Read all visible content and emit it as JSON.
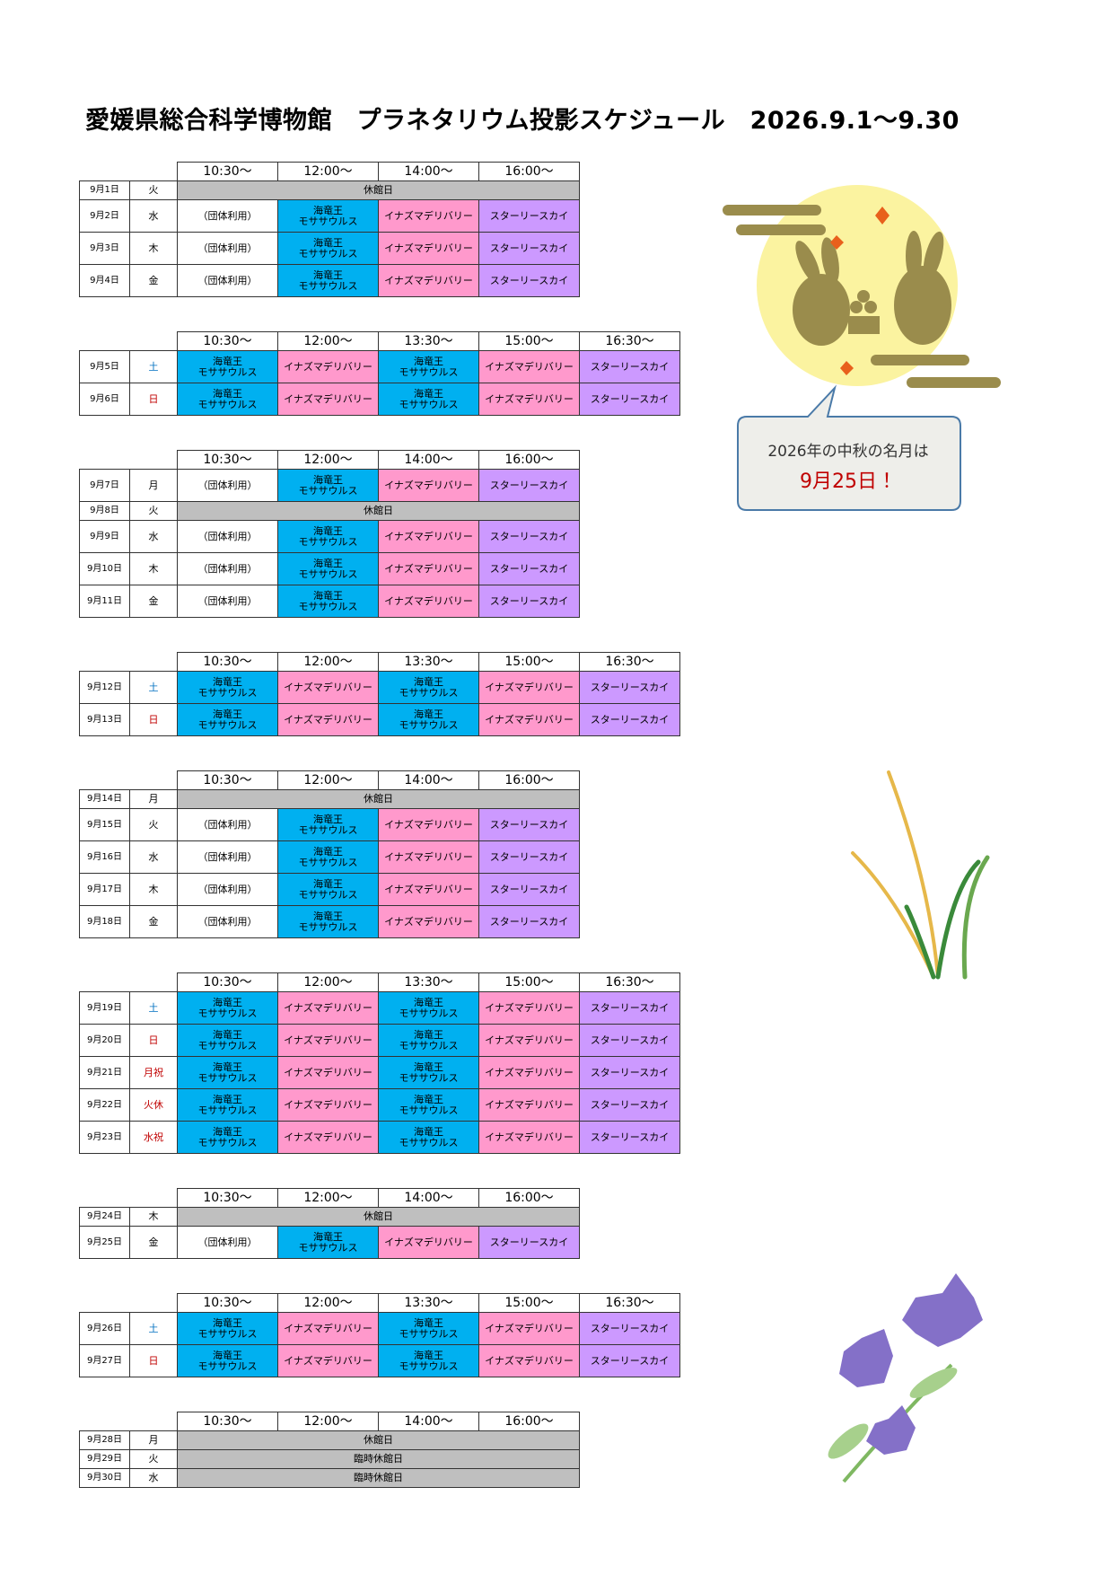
{
  "header": {
    "title": "愛媛県総合科学博物館　プラネタリウム投影スケジュール　2026.9.1～9.30"
  },
  "callout": {
    "line1": "2026年の中秋の名月は",
    "line2": "9月25日！",
    "line2_color": "#c00000"
  },
  "blocks": [
    {
      "times": [
        "10:30～",
        "12:00～",
        "14:00～",
        "16:00～"
      ],
      "rows": [
        {
          "date": "9月1日",
          "day": "火",
          "cells": [
            {
              "text": "休館日",
              "color": "#bfbfbf"
            }
          ]
        },
        {
          "date": "9月2日",
          "day": "水",
          "cells": [
            {
              "text": "（団体利用）",
              "color": "#ffffff"
            },
            {
              "text": "海竜王\nモササウルス",
              "color": "#00b0f0"
            },
            {
              "text": "イナズマデリバリー",
              "color": "#ff99cc"
            },
            {
              "text": "スターリースカイ",
              "color": "#cc99ff"
            }
          ]
        },
        {
          "date": "9月3日",
          "day": "木",
          "cells": [
            {
              "text": "（団体利用）",
              "color": "#ffffff"
            },
            {
              "text": "海竜王\nモササウルス",
              "color": "#00b0f0"
            },
            {
              "text": "イナズマデリバリー",
              "color": "#ff99cc"
            },
            {
              "text": "スターリースカイ",
              "color": "#cc99ff"
            }
          ]
        },
        {
          "date": "9月4日",
          "day": "金",
          "cells": [
            {
              "text": "（団体利用）",
              "color": "#ffffff"
            },
            {
              "text": "海竜王\nモササウルス",
              "color": "#00b0f0"
            },
            {
              "text": "イナズマデリバリー",
              "color": "#ff99cc"
            },
            {
              "text": "スターリースカイ",
              "color": "#cc99ff"
            }
          ]
        }
      ]
    },
    {
      "times": [
        "10:30～",
        "12:00～",
        "13:30～",
        "15:00～",
        "16:30～"
      ],
      "rows": [
        {
          "date": "9月5日",
          "day": "土",
          "day_color": "#0070c0",
          "cells": [
            {
              "text": "海竜王\nモササウルス",
              "color": "#00b0f0"
            },
            {
              "text": "イナズマデリバリー",
              "color": "#ff99cc"
            },
            {
              "text": "海竜王\nモササウルス",
              "color": "#00b0f0"
            },
            {
              "text": "イナズマデリバリー",
              "color": "#ff99cc"
            },
            {
              "text": "スターリースカイ",
              "color": "#cc99ff"
            }
          ]
        },
        {
          "date": "9月6日",
          "day": "日",
          "day_color": "#c00000",
          "cells": [
            {
              "text": "海竜王\nモササウルス",
              "color": "#00b0f0"
            },
            {
              "text": "イナズマデリバリー",
              "color": "#ff99cc"
            },
            {
              "text": "海竜王\nモササウルス",
              "color": "#00b0f0"
            },
            {
              "text": "イナズマデリバリー",
              "color": "#ff99cc"
            },
            {
              "text": "スターリースカイ",
              "color": "#cc99ff"
            }
          ]
        }
      ]
    },
    {
      "times": [
        "10:30～",
        "12:00～",
        "14:00～",
        "16:00～"
      ],
      "rows": [
        {
          "date": "9月7日",
          "day": "月",
          "cells": [
            {
              "text": "（団体利用）",
              "color": "#ffffff"
            },
            {
              "text": "海竜王\nモササウルス",
              "color": "#00b0f0"
            },
            {
              "text": "イナズマデリバリー",
              "color": "#ff99cc"
            },
            {
              "text": "スターリースカイ",
              "color": "#cc99ff"
            }
          ]
        },
        {
          "date": "9月8日",
          "day": "火",
          "cells": [
            {
              "text": "休館日",
              "color": "#bfbfbf"
            }
          ]
        },
        {
          "date": "9月9日",
          "day": "水",
          "cells": [
            {
              "text": "（団体利用）",
              "color": "#ffffff"
            },
            {
              "text": "海竜王\nモササウルス",
              "color": "#00b0f0"
            },
            {
              "text": "イナズマデリバリー",
              "color": "#ff99cc"
            },
            {
              "text": "スターリースカイ",
              "color": "#cc99ff"
            }
          ]
        },
        {
          "date": "9月10日",
          "day": "木",
          "cells": [
            {
              "text": "（団体利用）",
              "color": "#ffffff"
            },
            {
              "text": "海竜王\nモササウルス",
              "color": "#00b0f0"
            },
            {
              "text": "イナズマデリバリー",
              "color": "#ff99cc"
            },
            {
              "text": "スターリースカイ",
              "color": "#cc99ff"
            }
          ]
        },
        {
          "date": "9月11日",
          "day": "金",
          "cells": [
            {
              "text": "（団体利用）",
              "color": "#ffffff"
            },
            {
              "text": "海竜王\nモササウルス",
              "color": "#00b0f0"
            },
            {
              "text": "イナズマデリバリー",
              "color": "#ff99cc"
            },
            {
              "text": "スターリースカイ",
              "color": "#cc99ff"
            }
          ]
        }
      ]
    },
    {
      "times": [
        "10:30～",
        "12:00～",
        "13:30～",
        "15:00～",
        "16:30～"
      ],
      "rows": [
        {
          "date": "9月12日",
          "day": "土",
          "day_color": "#0070c0",
          "cells": [
            {
              "text": "海竜王\nモササウルス",
              "color": "#00b0f0"
            },
            {
              "text": "イナズマデリバリー",
              "color": "#ff99cc"
            },
            {
              "text": "海竜王\nモササウルス",
              "color": "#00b0f0"
            },
            {
              "text": "イナズマデリバリー",
              "color": "#ff99cc"
            },
            {
              "text": "スターリースカイ",
              "color": "#cc99ff"
            }
          ]
        },
        {
          "date": "9月13日",
          "day": "日",
          "day_color": "#c00000",
          "cells": [
            {
              "text": "海竜王\nモササウルス",
              "color": "#00b0f0"
            },
            {
              "text": "イナズマデリバリー",
              "color": "#ff99cc"
            },
            {
              "text": "海竜王\nモササウルス",
              "color": "#00b0f0"
            },
            {
              "text": "イナズマデリバリー",
              "color": "#ff99cc"
            },
            {
              "text": "スターリースカイ",
              "color": "#cc99ff"
            }
          ]
        }
      ]
    },
    {
      "times": [
        "10:30～",
        "12:00～",
        "14:00～",
        "16:00～"
      ],
      "rows": [
        {
          "date": "9月14日",
          "day": "月",
          "cells": [
            {
              "text": "休館日",
              "color": "#bfbfbf"
            }
          ]
        },
        {
          "date": "9月15日",
          "day": "火",
          "cells": [
            {
              "text": "（団体利用）",
              "color": "#ffffff"
            },
            {
              "text": "海竜王\nモササウルス",
              "color": "#00b0f0"
            },
            {
              "text": "イナズマデリバリー",
              "color": "#ff99cc"
            },
            {
              "text": "スターリースカイ",
              "color": "#cc99ff"
            }
          ]
        },
        {
          "date": "9月16日",
          "day": "水",
          "cells": [
            {
              "text": "（団体利用）",
              "color": "#ffffff"
            },
            {
              "text": "海竜王\nモササウルス",
              "color": "#00b0f0"
            },
            {
              "text": "イナズマデリバリー",
              "color": "#ff99cc"
            },
            {
              "text": "スターリースカイ",
              "color": "#cc99ff"
            }
          ]
        },
        {
          "date": "9月17日",
          "day": "木",
          "cells": [
            {
              "text": "（団体利用）",
              "color": "#ffffff"
            },
            {
              "text": "海竜王\nモササウルス",
              "color": "#00b0f0"
            },
            {
              "text": "イナズマデリバリー",
              "color": "#ff99cc"
            },
            {
              "text": "スターリースカイ",
              "color": "#cc99ff"
            }
          ]
        },
        {
          "date": "9月18日",
          "day": "金",
          "cells": [
            {
              "text": "（団体利用）",
              "color": "#ffffff"
            },
            {
              "text": "海竜王\nモササウルス",
              "color": "#00b0f0"
            },
            {
              "text": "イナズマデリバリー",
              "color": "#ff99cc"
            },
            {
              "text": "スターリースカイ",
              "color": "#cc99ff"
            }
          ]
        }
      ]
    },
    {
      "times": [
        "10:30～",
        "12:00～",
        "13:30～",
        "15:00～",
        "16:30～"
      ],
      "rows": [
        {
          "date": "9月19日",
          "day": "土",
          "day_color": "#0070c0",
          "cells": [
            {
              "text": "海竜王\nモササウルス",
              "color": "#00b0f0"
            },
            {
              "text": "イナズマデリバリー",
              "color": "#ff99cc"
            },
            {
              "text": "海竜王\nモササウルス",
              "color": "#00b0f0"
            },
            {
              "text": "イナズマデリバリー",
              "color": "#ff99cc"
            },
            {
              "text": "スターリースカイ",
              "color": "#cc99ff"
            }
          ]
        },
        {
          "date": "9月20日",
          "day": "日",
          "day_color": "#c00000",
          "cells": [
            {
              "text": "海竜王\nモササウルス",
              "color": "#00b0f0"
            },
            {
              "text": "イナズマデリバリー",
              "color": "#ff99cc"
            },
            {
              "text": "海竜王\nモササウルス",
              "color": "#00b0f0"
            },
            {
              "text": "イナズマデリバリー",
              "color": "#ff99cc"
            },
            {
              "text": "スターリースカイ",
              "color": "#cc99ff"
            }
          ]
        },
        {
          "date": "9月21日",
          "day": "月祝",
          "day_color": "#c00000",
          "cells": [
            {
              "text": "海竜王\nモササウルス",
              "color": "#00b0f0"
            },
            {
              "text": "イナズマデリバリー",
              "color": "#ff99cc"
            },
            {
              "text": "海竜王\nモササウルス",
              "color": "#00b0f0"
            },
            {
              "text": "イナズマデリバリー",
              "color": "#ff99cc"
            },
            {
              "text": "スターリースカイ",
              "color": "#cc99ff"
            }
          ]
        },
        {
          "date": "9月22日",
          "day": "火休",
          "day_color": "#c00000",
          "cells": [
            {
              "text": "海竜王\nモササウルス",
              "color": "#00b0f0"
            },
            {
              "text": "イナズマデリバリー",
              "color": "#ff99cc"
            },
            {
              "text": "海竜王\nモササウルス",
              "color": "#00b0f0"
            },
            {
              "text": "イナズマデリバリー",
              "color": "#ff99cc"
            },
            {
              "text": "スターリースカイ",
              "color": "#cc99ff"
            }
          ]
        },
        {
          "date": "9月23日",
          "day": "水祝",
          "day_color": "#c00000",
          "cells": [
            {
              "text": "海竜王\nモササウルス",
              "color": "#00b0f0"
            },
            {
              "text": "イナズマデリバリー",
              "color": "#ff99cc"
            },
            {
              "text": "海竜王\nモササウルス",
              "color": "#00b0f0"
            },
            {
              "text": "イナズマデリバリー",
              "color": "#ff99cc"
            },
            {
              "text": "スターリースカイ",
              "color": "#cc99ff"
            }
          ]
        }
      ]
    },
    {
      "times": [
        "10:30～",
        "12:00～",
        "14:00～",
        "16:00～"
      ],
      "rows": [
        {
          "date": "9月24日",
          "day": "木",
          "cells": [
            {
              "text": "休館日",
              "color": "#bfbfbf"
            }
          ]
        },
        {
          "date": "9月25日",
          "day": "金",
          "cells": [
            {
              "text": "（団体利用）",
              "color": "#ffffff"
            },
            {
              "text": "海竜王\nモササウルス",
              "color": "#00b0f0"
            },
            {
              "text": "イナズマデリバリー",
              "color": "#ff99cc"
            },
            {
              "text": "スターリースカイ",
              "color": "#cc99ff"
            }
          ]
        }
      ]
    },
    {
      "times": [
        "10:30～",
        "12:00～",
        "13:30～",
        "15:00～",
        "16:30～"
      ],
      "rows": [
        {
          "date": "9月26日",
          "day": "土",
          "day_color": "#0070c0",
          "cells": [
            {
              "text": "海竜王\nモササウルス",
              "color": "#00b0f0"
            },
            {
              "text": "イナズマデリバリー",
              "color": "#ff99cc"
            },
            {
              "text": "海竜王\nモササウルス",
              "color": "#00b0f0"
            },
            {
              "text": "イナズマデリバリー",
              "color": "#ff99cc"
            },
            {
              "text": "スターリースカイ",
              "color": "#cc99ff"
            }
          ]
        },
        {
          "date": "9月27日",
          "day": "日",
          "day_color": "#c00000",
          "cells": [
            {
              "text": "海竜王\nモササウルス",
              "color": "#00b0f0"
            },
            {
              "text": "イナズマデリバリー",
              "color": "#ff99cc"
            },
            {
              "text": "海竜王\nモササウルス",
              "color": "#00b0f0"
            },
            {
              "text": "イナズマデリバリー",
              "color": "#ff99cc"
            },
            {
              "text": "スターリースカイ",
              "color": "#cc99ff"
            }
          ]
        }
      ]
    },
    {
      "times": [
        "10:30～",
        "12:00～",
        "14:00～",
        "16:00～"
      ],
      "rows": [
        {
          "date": "9月28日",
          "day": "月",
          "cells": [
            {
              "text": "休館日",
              "color": "#bfbfbf"
            }
          ]
        },
        {
          "date": "9月29日",
          "day": "火",
          "cells": [
            {
              "text": "臨時休館日",
              "color": "#bfbfbf"
            }
          ]
        },
        {
          "date": "9月30日",
          "day": "水",
          "cells": [
            {
              "text": "臨時休館日",
              "color": "#bfbfbf"
            }
          ]
        }
      ]
    }
  ]
}
